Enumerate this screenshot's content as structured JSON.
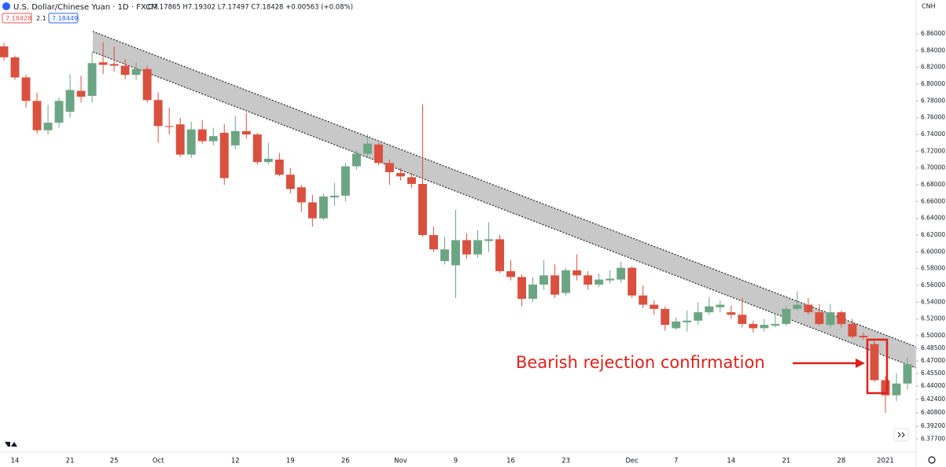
{
  "chart_data": {
    "type": "candlestick",
    "title": "U.S. Dollar/Chinese Yuan · 1D · FXCM",
    "subtitle": "O7.17865 H7.19302 L7.17497 C7.18428 +0.00563 (+0.08%)",
    "price_tags": [
      "7.18428",
      "2.1",
      "7.18449"
    ],
    "currency": "CNH",
    "annotation": "Bearish rejection confirmation",
    "up_color": "#6ca584",
    "down_color": "#d9503f",
    "categories": [
      null,
      "14",
      null,
      null,
      null,
      null,
      "21",
      null,
      null,
      null,
      "25",
      null,
      null,
      null,
      "Oct",
      null,
      null,
      null,
      null,
      null,
      null,
      "12",
      null,
      null,
      null,
      null,
      "19",
      null,
      null,
      null,
      null,
      "26",
      null,
      null,
      null,
      null,
      "Nov",
      null,
      null,
      null,
      null,
      "9",
      null,
      null,
      null,
      null,
      "16",
      null,
      null,
      null,
      null,
      "23",
      null,
      null,
      null,
      null,
      null,
      "Dec",
      null,
      null,
      null,
      "7",
      null,
      null,
      null,
      null,
      "14",
      null,
      null,
      null,
      null,
      "21",
      null,
      null,
      null,
      null,
      "28",
      null,
      null,
      null,
      "2021",
      null,
      null
    ],
    "open": [
      6.845,
      6.832,
      6.808,
      6.78,
      6.745,
      6.754,
      6.767,
      6.792,
      6.786,
      6.826,
      6.824,
      6.822,
      6.811,
      6.818,
      6.781,
      6.75,
      6.752,
      6.716,
      6.746,
      6.732,
      6.742,
      6.727,
      6.744,
      6.74,
      6.707,
      6.71,
      6.692,
      6.677,
      6.659,
      6.64,
      6.665,
      6.667,
      6.702,
      6.717,
      6.728,
      6.706,
      6.694,
      6.689,
      6.681,
      6.62,
      6.589,
      6.584,
      6.614,
      6.597,
      6.613,
      6.615,
      6.577,
      6.57,
      6.544,
      6.561,
      6.572,
      6.551,
      6.578,
      6.572,
      6.561,
      6.566,
      6.567,
      6.581,
      6.548,
      6.537,
      6.532,
      6.509,
      6.516,
      6.518,
      6.528,
      6.534,
      6.528,
      6.525,
      6.514,
      6.509,
      6.512,
      6.514,
      6.532,
      6.537,
      6.528,
      6.513,
      6.528,
      6.514,
      6.5,
      6.49,
      6.447,
      6.429,
      6.443
    ],
    "high": [
      6.849,
      6.834,
      6.811,
      6.79,
      6.775,
      6.784,
      6.812,
      6.81,
      6.838,
      6.85,
      6.845,
      6.83,
      6.826,
      6.822,
      6.79,
      6.772,
      6.76,
      6.755,
      6.757,
      6.748,
      6.752,
      6.762,
      6.766,
      6.742,
      6.73,
      6.718,
      6.7,
      6.68,
      6.668,
      6.67,
      6.682,
      6.706,
      6.722,
      6.74,
      6.73,
      6.71,
      6.7,
      6.694,
      6.776,
      6.63,
      6.618,
      6.65,
      6.622,
      6.626,
      6.635,
      6.62,
      6.59,
      6.573,
      6.57,
      6.59,
      6.585,
      6.581,
      6.597,
      6.577,
      6.574,
      6.578,
      6.588,
      6.583,
      6.56,
      6.542,
      6.535,
      6.522,
      6.53,
      6.54,
      6.546,
      6.542,
      6.536,
      6.545,
      6.518,
      6.52,
      6.526,
      6.535,
      6.553,
      6.545,
      6.538,
      6.538,
      6.53,
      6.52,
      6.504,
      6.496,
      6.452,
      6.455,
      6.474
    ],
    "low": [
      6.828,
      6.805,
      6.772,
      6.741,
      6.74,
      6.748,
      6.76,
      6.778,
      6.778,
      6.812,
      6.815,
      6.806,
      6.805,
      6.778,
      6.73,
      6.74,
      6.713,
      6.712,
      6.729,
      6.727,
      6.68,
      6.722,
      6.735,
      6.704,
      6.704,
      6.69,
      6.67,
      6.648,
      6.63,
      6.638,
      6.655,
      6.66,
      6.698,
      6.712,
      6.703,
      6.68,
      6.685,
      6.676,
      6.618,
      6.6,
      6.585,
      6.545,
      6.592,
      6.593,
      6.6,
      6.575,
      6.566,
      6.535,
      6.54,
      6.555,
      6.545,
      6.548,
      6.566,
      6.555,
      6.558,
      6.562,
      6.563,
      6.545,
      6.533,
      6.525,
      6.506,
      6.507,
      6.505,
      6.513,
      6.525,
      6.528,
      6.52,
      6.51,
      6.504,
      6.505,
      6.51,
      6.512,
      6.53,
      6.525,
      6.512,
      6.51,
      6.51,
      6.497,
      6.495,
      6.445,
      6.408,
      6.422,
      6.436
    ],
    "close": [
      6.832,
      6.808,
      6.78,
      6.745,
      6.754,
      6.78,
      6.793,
      6.785,
      6.825,
      6.823,
      6.822,
      6.811,
      6.818,
      6.781,
      6.75,
      6.749,
      6.716,
      6.746,
      6.732,
      6.738,
      6.688,
      6.744,
      6.74,
      6.707,
      6.711,
      6.692,
      6.675,
      6.659,
      6.64,
      6.666,
      6.667,
      6.702,
      6.717,
      6.729,
      6.706,
      6.695,
      6.69,
      6.681,
      6.62,
      6.603,
      6.603,
      6.614,
      6.597,
      6.614,
      6.615,
      6.577,
      6.57,
      6.544,
      6.561,
      6.572,
      6.549,
      6.578,
      6.572,
      6.561,
      6.567,
      6.568,
      6.581,
      6.548,
      6.537,
      6.532,
      6.513,
      6.517,
      6.518,
      6.528,
      6.535,
      6.537,
      6.525,
      6.514,
      6.509,
      6.513,
      6.514,
      6.532,
      6.537,
      6.528,
      6.514,
      6.528,
      6.514,
      6.499,
      6.498,
      6.447,
      6.429,
      6.443,
      6.466
    ],
    "ylim": [
      6.3613,
      6.9003
    ],
    "yticks": [
      {
        "value": 6.86,
        "label": "6.86000"
      },
      {
        "value": 6.84,
        "label": "6.84000"
      },
      {
        "value": 6.82,
        "label": "6.82000"
      },
      {
        "value": 6.8,
        "label": "6.80000"
      },
      {
        "value": 6.78,
        "label": "6.78000"
      },
      {
        "value": 6.76,
        "label": "6.76000"
      },
      {
        "value": 6.74,
        "label": "6.74000"
      },
      {
        "value": 6.72,
        "label": "6.72000"
      },
      {
        "value": 6.7,
        "label": "6.70000"
      },
      {
        "value": 6.68,
        "label": "6.68000"
      },
      {
        "value": 6.66,
        "label": "6.66000"
      },
      {
        "value": 6.64,
        "label": "6.64000"
      },
      {
        "value": 6.62,
        "label": "6.62000"
      },
      {
        "value": 6.6,
        "label": "6.60000"
      },
      {
        "value": 6.58,
        "label": "6.58000"
      },
      {
        "value": 6.56,
        "label": "6.56000"
      },
      {
        "value": 6.54,
        "label": "6.54000"
      },
      {
        "value": 6.52,
        "label": "6.52000"
      },
      {
        "value": 6.5,
        "label": "6.50000"
      },
      {
        "value": 6.485,
        "label": "6.48500"
      },
      {
        "value": 6.47,
        "label": "6.47000"
      },
      {
        "value": 6.455,
        "label": "6.45500"
      },
      {
        "value": 6.44,
        "label": "6.44000"
      },
      {
        "value": 6.424,
        "label": "6.42400"
      },
      {
        "value": 6.408,
        "label": "6.40800"
      },
      {
        "value": 6.392,
        "label": "6.39200"
      },
      {
        "value": 6.377,
        "label": "6.37700"
      }
    ],
    "grid": false
  }
}
